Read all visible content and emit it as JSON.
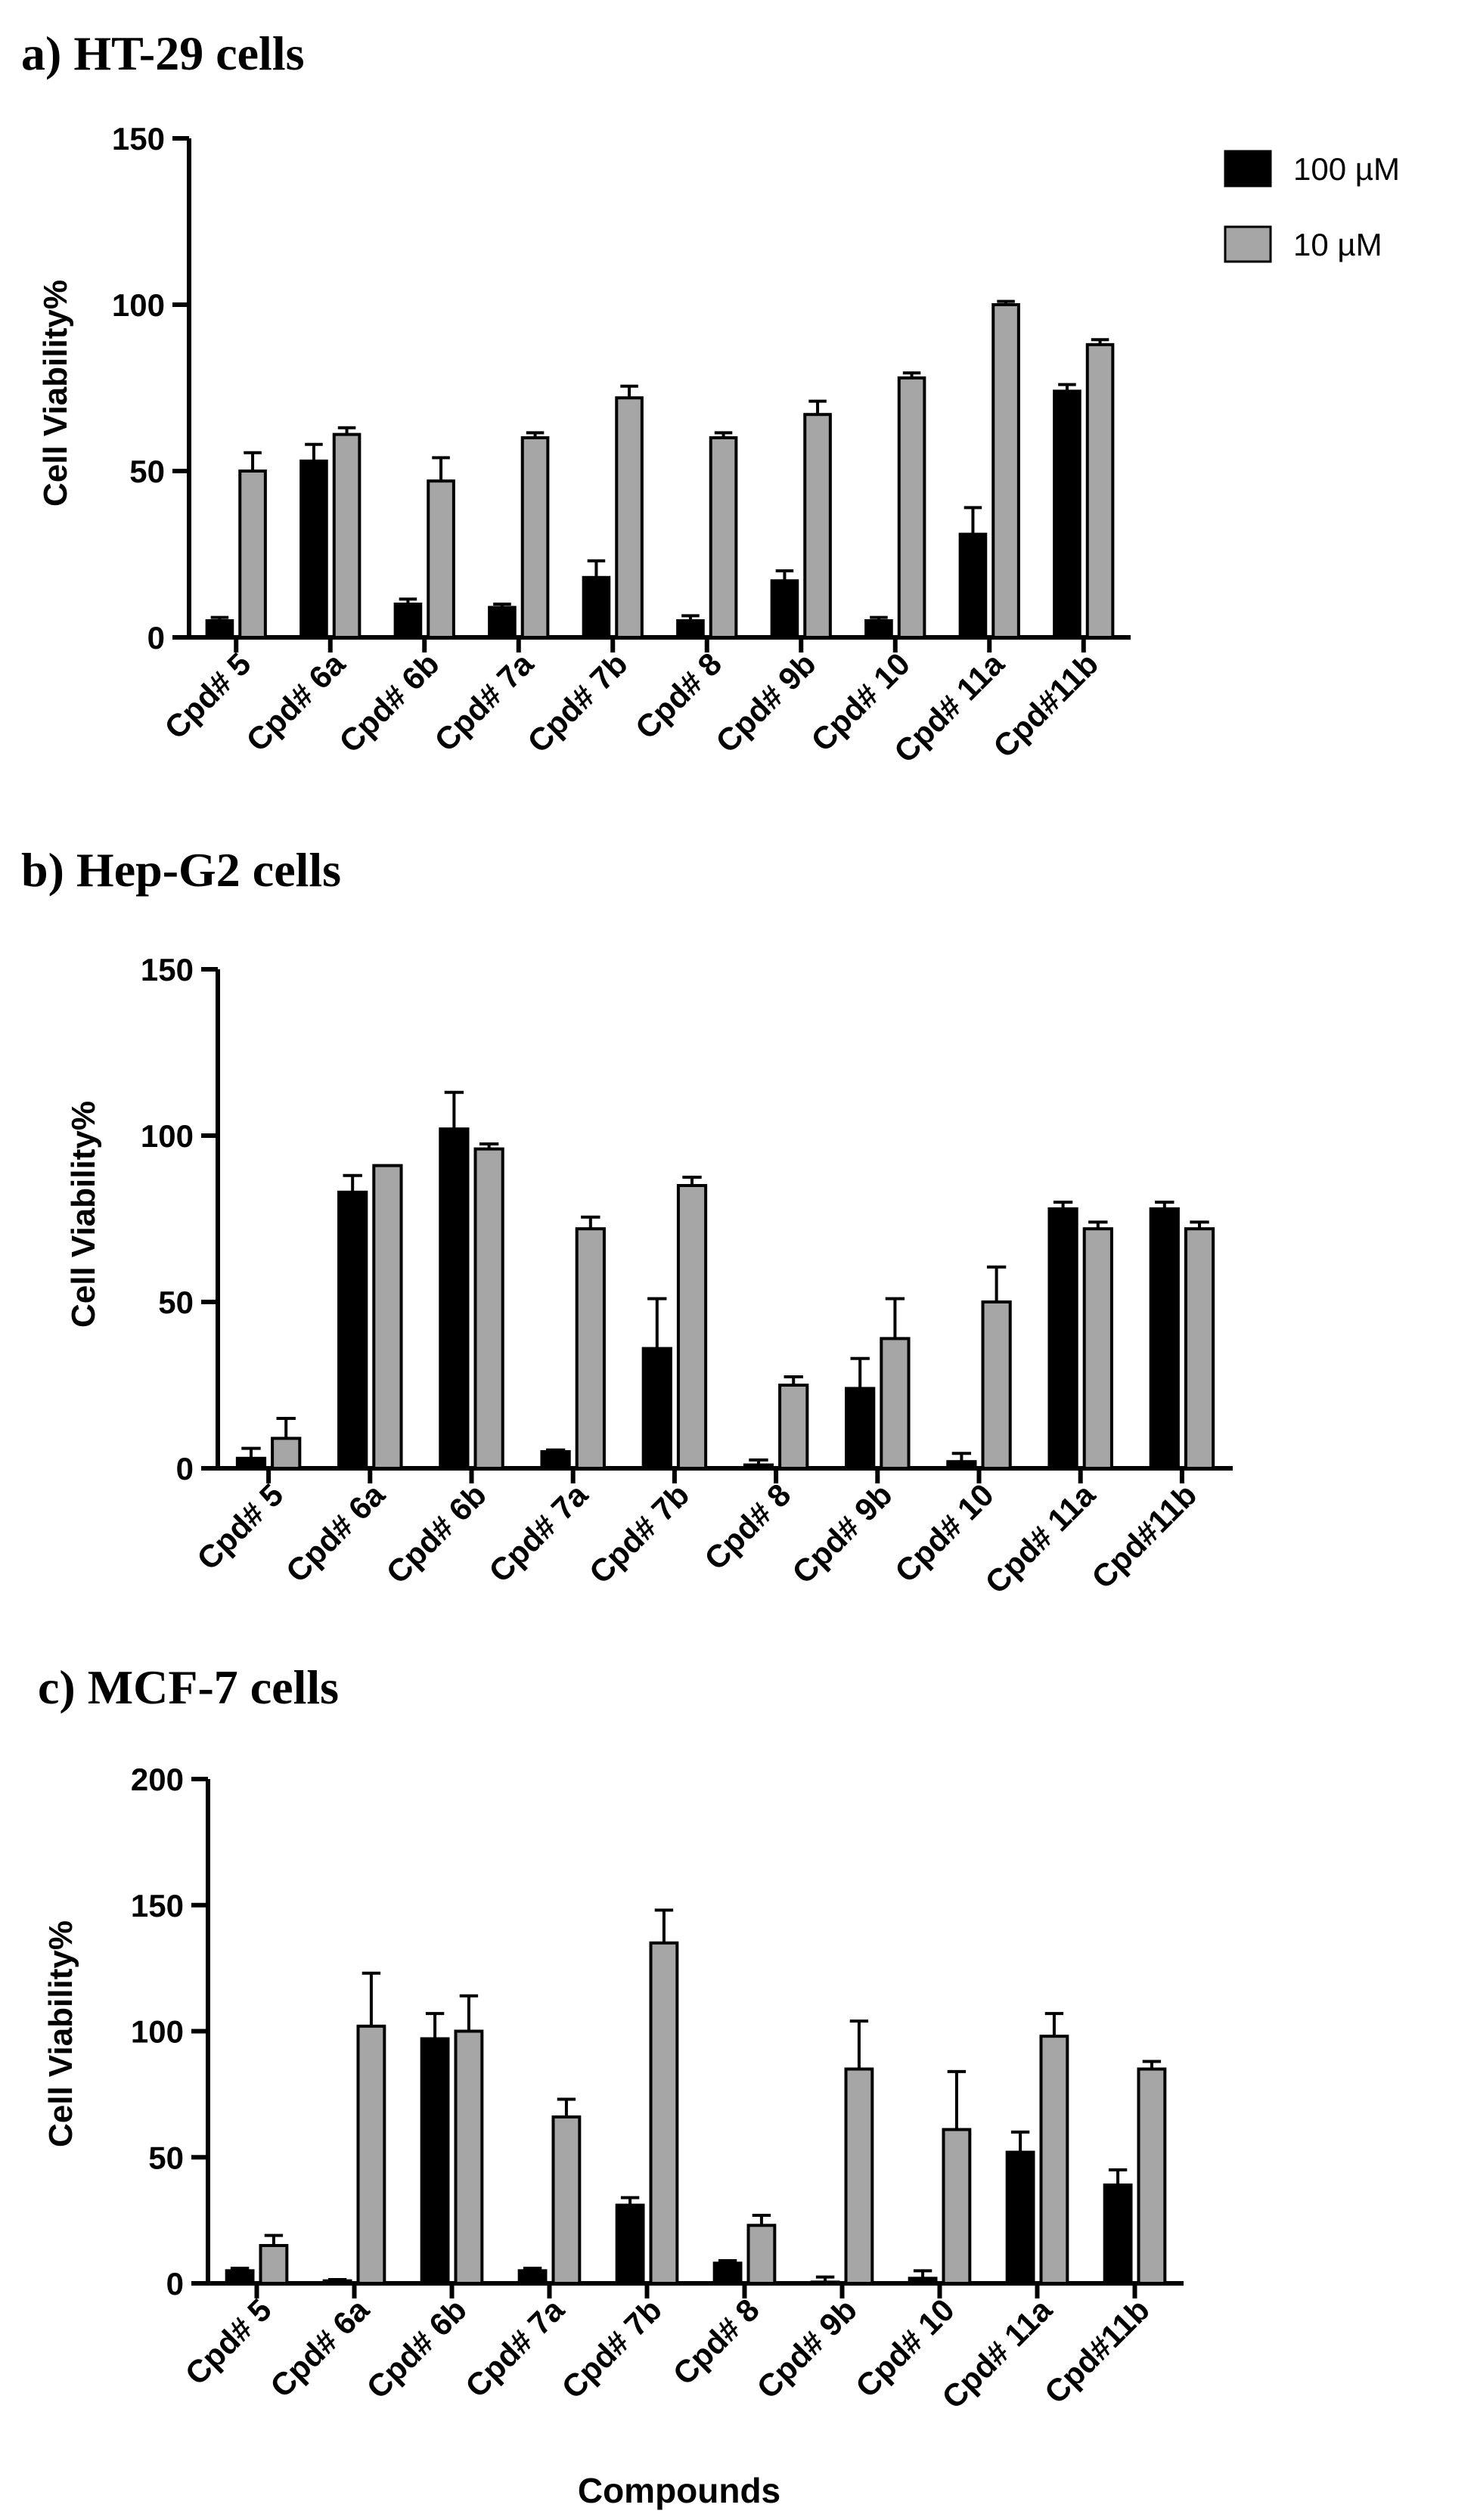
{
  "colors": {
    "series_100": "#000000",
    "series_10": "#a6a6a6",
    "axis": "#000000"
  },
  "legend": {
    "items": [
      {
        "label": "100 µM"
      },
      {
        "label": "10 µM"
      }
    ]
  },
  "xlabel": "Compounds",
  "chart_data": [
    {
      "type": "bar",
      "title": "a) HT-29 cells",
      "ylabel": "Cell Viability%",
      "ylim": [
        0,
        150
      ],
      "yticks": [
        0,
        50,
        100,
        150
      ],
      "categories": [
        "Cpd# 5",
        "Cpd# 6a",
        "Cpd# 6b",
        "Cpd# 7a",
        "Cpd# 7b",
        "Cpd# 8",
        "Cpd# 9b",
        "Cpd# 10",
        "Cpd# 11a",
        "Cpd#11b"
      ],
      "series": [
        {
          "name": "100 µM",
          "values": [
            5,
            53,
            10,
            9,
            18,
            5,
            17,
            5,
            31,
            74
          ],
          "errors": [
            1,
            5,
            1.5,
            1,
            5,
            1.5,
            3,
            1,
            8,
            2
          ]
        },
        {
          "name": "10 µM",
          "values": [
            50,
            61,
            47,
            60,
            72,
            60,
            67,
            78,
            100,
            88
          ],
          "errors": [
            5.5,
            2,
            7,
            1.5,
            3.5,
            1.5,
            4,
            1.5,
            1,
            1.5
          ]
        }
      ]
    },
    {
      "type": "bar",
      "title": "b) Hep-G2  cells",
      "ylabel": "Cell Viability%",
      "ylim": [
        0,
        150
      ],
      "yticks": [
        0,
        50,
        100,
        150
      ],
      "categories": [
        "Cpd# 5",
        "Cpd# 6a",
        "Cpd# 6b",
        "Cpd# 7a",
        "Cpd# 7b",
        "Cpd# 8",
        "Cpd# 9b",
        "Cpd# 10",
        "Cpd# 11a",
        "Cpd#11b"
      ],
      "series": [
        {
          "name": "100 µM",
          "values": [
            3,
            83,
            102,
            5,
            36,
            1,
            24,
            2,
            78,
            78
          ],
          "errors": [
            3,
            5,
            11,
            0.5,
            15,
            1.5,
            9,
            2.5,
            2,
            2
          ]
        },
        {
          "name": "10 µM",
          "values": [
            9,
            91,
            96,
            72,
            85,
            25,
            39,
            50,
            72,
            72
          ],
          "errors": [
            6,
            0,
            1.5,
            3.5,
            2.5,
            2.5,
            12,
            10.5,
            2,
            2
          ]
        }
      ]
    },
    {
      "type": "bar",
      "title": "c) MCF-7 cells",
      "ylabel": "Cell Viability%",
      "xlabel": "Compounds",
      "ylim": [
        0,
        200
      ],
      "yticks": [
        0,
        50,
        100,
        150,
        200
      ],
      "categories": [
        "Cpd# 5",
        "Cpd# 6a",
        "Cpd# 6b",
        "Cpd# 7a",
        "Cpd# 7b",
        "Cpd# 8",
        "Cpd# 9b",
        "Cpd# 10",
        "Cpd# 11a",
        "Cpd#11b"
      ],
      "series": [
        {
          "name": "100 µM",
          "values": [
            5,
            1,
            97,
            5,
            31,
            8,
            0.5,
            2,
            52,
            39
          ],
          "errors": [
            1,
            0.5,
            10,
            1,
            3,
            1,
            2,
            3,
            8,
            6
          ]
        },
        {
          "name": "10 µM",
          "values": [
            15,
            102,
            100,
            66,
            135,
            23,
            85,
            61,
            98,
            85
          ],
          "errors": [
            4,
            21,
            14,
            7,
            13,
            4,
            19,
            23,
            9,
            3
          ]
        }
      ]
    }
  ]
}
